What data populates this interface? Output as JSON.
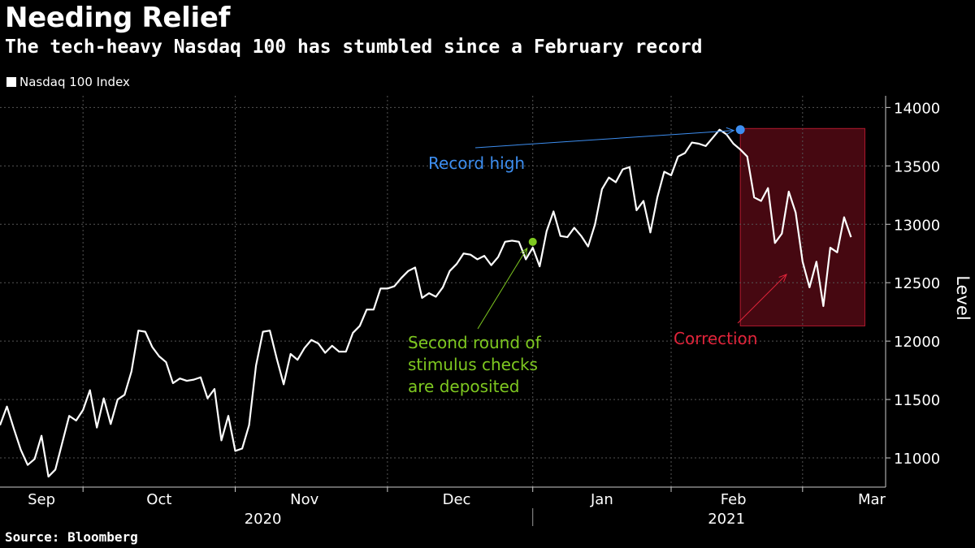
{
  "header": {
    "title": "Needing Relief",
    "subtitle": "The tech-heavy Nasdaq 100 has stumbled since a February record"
  },
  "footer": {
    "source": "Source: Bloomberg"
  },
  "chart_data": {
    "type": "line",
    "title": "Needing Relief",
    "subtitle": "The tech-heavy Nasdaq 100 has stumbled since a February record",
    "xlabel": "",
    "ylabel": "Level",
    "y_axis_position": "right",
    "ylim": [
      10750,
      14100
    ],
    "yticks": [
      11000,
      11500,
      12000,
      12500,
      13000,
      13500,
      14000
    ],
    "xlim": [
      0,
      128
    ],
    "month_ticks": [
      {
        "label": "Sep",
        "x": 6
      },
      {
        "label": "Oct",
        "x": 23
      },
      {
        "label": "Nov",
        "x": 44
      },
      {
        "label": "Dec",
        "x": 66
      },
      {
        "label": "Jan",
        "x": 87
      },
      {
        "label": "Feb",
        "x": 106
      },
      {
        "label": "Mar",
        "x": 126
      }
    ],
    "month_separators": [
      12,
      34,
      56,
      77,
      97,
      116
    ],
    "year_labels": [
      {
        "label": "2020",
        "x": 38
      },
      {
        "label": "2021",
        "x": 105
      }
    ],
    "year_divider_x": 77,
    "grid": true,
    "legend": {
      "position": "top-left",
      "entries": [
        "Nasdaq 100 Index"
      ]
    },
    "series": [
      {
        "name": "Nasdaq 100 Index",
        "color": "#ffffff",
        "values": [
          11280,
          11440,
          11250,
          11070,
          10940,
          10990,
          11190,
          10840,
          10900,
          11130,
          11360,
          11320,
          11410,
          11580,
          11260,
          11510,
          11290,
          11500,
          11540,
          11740,
          12090,
          12080,
          11950,
          11870,
          11820,
          11640,
          11680,
          11660,
          11670,
          11690,
          11510,
          11590,
          11150,
          11360,
          11060,
          11080,
          11280,
          11790,
          12080,
          12090,
          11850,
          11630,
          11890,
          11840,
          11940,
          12010,
          11980,
          11900,
          11960,
          11910,
          11910,
          12070,
          12130,
          12270,
          12270,
          12450,
          12450,
          12470,
          12540,
          12600,
          12630,
          12370,
          12410,
          12380,
          12460,
          12600,
          12660,
          12750,
          12740,
          12700,
          12730,
          12650,
          12720,
          12850,
          12860,
          12850,
          12700,
          12800,
          12640,
          12940,
          13110,
          12900,
          12890,
          12970,
          12900,
          12810,
          13000,
          13300,
          13400,
          13360,
          13470,
          13490,
          13120,
          13200,
          12930,
          13230,
          13450,
          13420,
          13580,
          13610,
          13700,
          13690,
          13670,
          13740,
          13810,
          13770,
          13690,
          13640,
          13580,
          13230,
          13200,
          13310,
          12840,
          12920,
          13280,
          13100,
          12680,
          12460,
          12680,
          12300,
          12800,
          12760,
          13060,
          12890
        ]
      }
    ],
    "highlight_region": {
      "x_start": 107,
      "x_end": 125,
      "y_min": 12130,
      "y_max": 13820,
      "fill": "#4a0812",
      "stroke": "#b01a2e"
    },
    "annotations": [
      {
        "text": "Record high",
        "color": "#3d8ef0",
        "point": {
          "x": 107,
          "y": 13810
        }
      },
      {
        "text": "Second round of\nstimulus checks\nare deposited",
        "color": "#7ec820",
        "point": {
          "x": 77,
          "y": 12850
        }
      },
      {
        "text": "Correction",
        "color": "#e0243a",
        "point": null
      }
    ]
  }
}
